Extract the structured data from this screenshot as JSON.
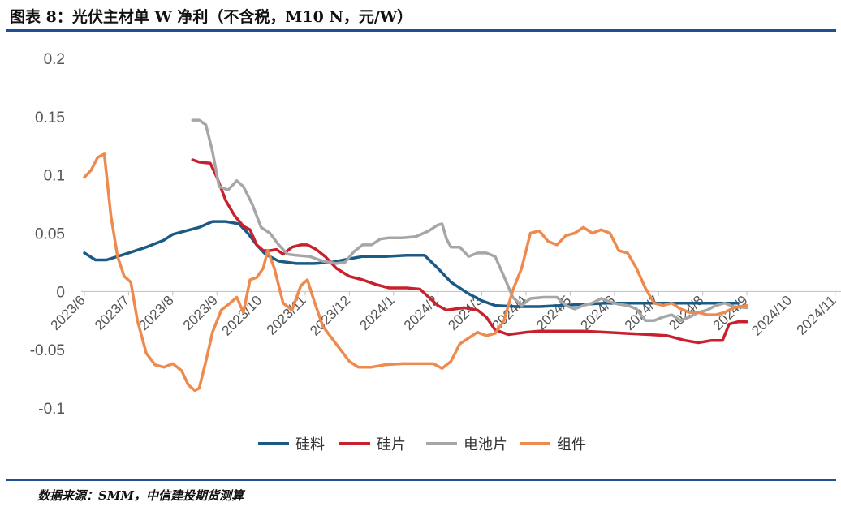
{
  "header": {
    "title": "图表 8：光伏主材单 W 净利（不含税，M10 N，元/W）"
  },
  "footer": {
    "source": "数据来源：SMM，中信建投期货测算"
  },
  "chart_data": {
    "type": "line",
    "title": "图表 8：光伏主材单 W 净利（不含税，M10 N，元/W）",
    "xlabel": "",
    "ylabel": "",
    "ylim": [
      -0.1,
      0.2
    ],
    "yticks": [
      "0.2",
      "0.15",
      "0.1",
      "0.05",
      "0",
      "-0.05",
      "-0.1"
    ],
    "categories": [
      "2023/6",
      "2023/7",
      "2023/8",
      "2023/9",
      "2023/10",
      "2023/11",
      "2023/12",
      "2024/1",
      "2024/2",
      "2024/3",
      "2024/4",
      "2024/5",
      "2024/6",
      "2024/7",
      "2024/8",
      "2024/9",
      "2024/10",
      "2024/11"
    ],
    "legend_position": "bottom",
    "grid": false,
    "series": [
      {
        "name": "硅料",
        "color": "#1b5a85",
        "points": [
          [
            0,
            0.033
          ],
          [
            0.25,
            0.027
          ],
          [
            0.5,
            0.027
          ],
          [
            0.75,
            0.03
          ],
          [
            1,
            0.033
          ],
          [
            1.4,
            0.038
          ],
          [
            1.8,
            0.044
          ],
          [
            2.0,
            0.049
          ],
          [
            2.3,
            0.052
          ],
          [
            2.6,
            0.055
          ],
          [
            2.9,
            0.06
          ],
          [
            3.2,
            0.06
          ],
          [
            3.5,
            0.058
          ],
          [
            3.7,
            0.05
          ],
          [
            3.9,
            0.04
          ],
          [
            4.1,
            0.032
          ],
          [
            4.4,
            0.026
          ],
          [
            4.8,
            0.024
          ],
          [
            5.2,
            0.024
          ],
          [
            5.6,
            0.025
          ],
          [
            6.0,
            0.028
          ],
          [
            6.3,
            0.03
          ],
          [
            6.8,
            0.03
          ],
          [
            7.3,
            0.031
          ],
          [
            7.7,
            0.031
          ],
          [
            8.0,
            0.02
          ],
          [
            8.3,
            0.008
          ],
          [
            8.7,
            -0.002
          ],
          [
            9.0,
            -0.008
          ],
          [
            9.3,
            -0.012
          ],
          [
            9.8,
            -0.013
          ],
          [
            10.3,
            -0.013
          ],
          [
            10.8,
            -0.012
          ],
          [
            11.3,
            -0.011
          ],
          [
            11.8,
            -0.01
          ],
          [
            12.3,
            -0.01
          ],
          [
            12.8,
            -0.01
          ],
          [
            13.3,
            -0.01
          ],
          [
            13.8,
            -0.01
          ],
          [
            14.3,
            -0.01
          ],
          [
            14.8,
            -0.01
          ]
        ]
      },
      {
        "name": "硅片",
        "color": "#c8202d",
        "points": [
          [
            2.45,
            0.113
          ],
          [
            2.6,
            0.111
          ],
          [
            2.85,
            0.11
          ],
          [
            3.0,
            0.098
          ],
          [
            3.2,
            0.078
          ],
          [
            3.4,
            0.065
          ],
          [
            3.6,
            0.056
          ],
          [
            3.75,
            0.053
          ],
          [
            3.9,
            0.04
          ],
          [
            4.05,
            0.035
          ],
          [
            4.2,
            0.035
          ],
          [
            4.35,
            0.036
          ],
          [
            4.5,
            0.032
          ],
          [
            4.7,
            0.038
          ],
          [
            4.9,
            0.04
          ],
          [
            5.05,
            0.04
          ],
          [
            5.25,
            0.036
          ],
          [
            5.45,
            0.03
          ],
          [
            5.7,
            0.02
          ],
          [
            6.0,
            0.013
          ],
          [
            6.3,
            0.01
          ],
          [
            6.6,
            0.006
          ],
          [
            6.9,
            0.003
          ],
          [
            7.3,
            0.003
          ],
          [
            7.6,
            0.002
          ],
          [
            7.8,
            -0.005
          ],
          [
            8.0,
            -0.012
          ],
          [
            8.2,
            -0.016
          ],
          [
            8.4,
            -0.015
          ],
          [
            8.6,
            -0.014
          ],
          [
            8.9,
            -0.016
          ],
          [
            9.1,
            -0.022
          ],
          [
            9.3,
            -0.033
          ],
          [
            9.6,
            -0.037
          ],
          [
            10.0,
            -0.035
          ],
          [
            10.3,
            -0.034
          ],
          [
            10.8,
            -0.034
          ],
          [
            11.3,
            -0.034
          ],
          [
            11.8,
            -0.035
          ],
          [
            12.3,
            -0.036
          ],
          [
            12.8,
            -0.037
          ],
          [
            13.2,
            -0.038
          ],
          [
            13.6,
            -0.042
          ],
          [
            13.9,
            -0.044
          ],
          [
            14.2,
            -0.042
          ],
          [
            14.45,
            -0.042
          ],
          [
            14.6,
            -0.028
          ],
          [
            14.8,
            -0.026
          ],
          [
            15.0,
            -0.026
          ]
        ]
      },
      {
        "name": "电池片",
        "color": "#a6a6a6",
        "points": [
          [
            2.45,
            0.147
          ],
          [
            2.6,
            0.147
          ],
          [
            2.75,
            0.143
          ],
          [
            2.9,
            0.12
          ],
          [
            3.05,
            0.09
          ],
          [
            3.25,
            0.087
          ],
          [
            3.45,
            0.095
          ],
          [
            3.6,
            0.09
          ],
          [
            3.8,
            0.075
          ],
          [
            4.0,
            0.055
          ],
          [
            4.2,
            0.05
          ],
          [
            4.4,
            0.04
          ],
          [
            4.6,
            0.032
          ],
          [
            4.8,
            0.031
          ],
          [
            5.1,
            0.03
          ],
          [
            5.4,
            0.026
          ],
          [
            5.7,
            0.024
          ],
          [
            5.9,
            0.025
          ],
          [
            6.1,
            0.034
          ],
          [
            6.3,
            0.04
          ],
          [
            6.5,
            0.04
          ],
          [
            6.7,
            0.045
          ],
          [
            6.9,
            0.046
          ],
          [
            7.2,
            0.046
          ],
          [
            7.5,
            0.047
          ],
          [
            7.8,
            0.052
          ],
          [
            8.0,
            0.057
          ],
          [
            8.1,
            0.058
          ],
          [
            8.2,
            0.045
          ],
          [
            8.3,
            0.038
          ],
          [
            8.5,
            0.038
          ],
          [
            8.7,
            0.03
          ],
          [
            8.9,
            0.033
          ],
          [
            9.1,
            0.033
          ],
          [
            9.3,
            0.03
          ],
          [
            9.5,
            0.013
          ],
          [
            9.7,
            -0.005
          ],
          [
            9.9,
            -0.012
          ],
          [
            10.1,
            -0.006
          ],
          [
            10.4,
            -0.005
          ],
          [
            10.7,
            -0.005
          ],
          [
            10.9,
            -0.012
          ],
          [
            11.1,
            -0.015
          ],
          [
            11.3,
            -0.012
          ],
          [
            11.5,
            -0.01
          ],
          [
            11.7,
            -0.006
          ],
          [
            11.9,
            -0.009
          ],
          [
            12.1,
            -0.011
          ],
          [
            12.3,
            -0.012
          ],
          [
            12.5,
            -0.015
          ],
          [
            12.7,
            -0.025
          ],
          [
            12.9,
            -0.025
          ],
          [
            13.1,
            -0.022
          ],
          [
            13.3,
            -0.02
          ],
          [
            13.5,
            -0.025
          ],
          [
            13.7,
            -0.022
          ],
          [
            13.9,
            -0.018
          ],
          [
            14.1,
            -0.016
          ],
          [
            14.3,
            -0.012
          ],
          [
            14.5,
            -0.01
          ],
          [
            14.7,
            -0.013
          ],
          [
            15.0,
            -0.014
          ]
        ]
      },
      {
        "name": "组件",
        "color": "#ee8a4e",
        "points": [
          [
            0,
            0.098
          ],
          [
            0.15,
            0.104
          ],
          [
            0.3,
            0.115
          ],
          [
            0.45,
            0.118
          ],
          [
            0.6,
            0.065
          ],
          [
            0.75,
            0.03
          ],
          [
            0.9,
            0.013
          ],
          [
            1.05,
            0.008
          ],
          [
            1.2,
            -0.025
          ],
          [
            1.4,
            -0.053
          ],
          [
            1.6,
            -0.063
          ],
          [
            1.8,
            -0.065
          ],
          [
            2.0,
            -0.062
          ],
          [
            2.2,
            -0.068
          ],
          [
            2.35,
            -0.08
          ],
          [
            2.5,
            -0.085
          ],
          [
            2.6,
            -0.083
          ],
          [
            2.75,
            -0.06
          ],
          [
            2.9,
            -0.035
          ],
          [
            3.1,
            -0.016
          ],
          [
            3.3,
            -0.01
          ],
          [
            3.45,
            -0.005
          ],
          [
            3.6,
            -0.018
          ],
          [
            3.75,
            0.01
          ],
          [
            3.9,
            0.012
          ],
          [
            4.05,
            0.02
          ],
          [
            4.15,
            0.035
          ],
          [
            4.3,
            0.02
          ],
          [
            4.5,
            -0.01
          ],
          [
            4.7,
            -0.016
          ],
          [
            4.9,
            0.005
          ],
          [
            5.05,
            0.01
          ],
          [
            5.2,
            -0.008
          ],
          [
            5.4,
            -0.03
          ],
          [
            5.6,
            -0.04
          ],
          [
            5.8,
            -0.05
          ],
          [
            6.0,
            -0.06
          ],
          [
            6.2,
            -0.065
          ],
          [
            6.5,
            -0.065
          ],
          [
            6.8,
            -0.063
          ],
          [
            7.2,
            -0.062
          ],
          [
            7.6,
            -0.062
          ],
          [
            7.9,
            -0.062
          ],
          [
            8.1,
            -0.066
          ],
          [
            8.3,
            -0.06
          ],
          [
            8.5,
            -0.045
          ],
          [
            8.7,
            -0.04
          ],
          [
            8.9,
            -0.035
          ],
          [
            9.1,
            -0.038
          ],
          [
            9.3,
            -0.036
          ],
          [
            9.5,
            -0.025
          ],
          [
            9.7,
            0.001
          ],
          [
            9.9,
            0.02
          ],
          [
            10.1,
            0.05
          ],
          [
            10.3,
            0.052
          ],
          [
            10.5,
            0.043
          ],
          [
            10.7,
            0.04
          ],
          [
            10.9,
            0.048
          ],
          [
            11.1,
            0.05
          ],
          [
            11.3,
            0.055
          ],
          [
            11.5,
            0.05
          ],
          [
            11.7,
            0.053
          ],
          [
            11.9,
            0.05
          ],
          [
            12.1,
            0.035
          ],
          [
            12.3,
            0.033
          ],
          [
            12.5,
            0.02
          ],
          [
            12.7,
            0.003
          ],
          [
            12.9,
            -0.01
          ],
          [
            13.1,
            -0.012
          ],
          [
            13.3,
            -0.01
          ],
          [
            13.5,
            -0.015
          ],
          [
            13.7,
            -0.018
          ],
          [
            13.9,
            -0.018
          ],
          [
            14.1,
            -0.02
          ],
          [
            14.3,
            -0.02
          ],
          [
            14.5,
            -0.018
          ],
          [
            14.7,
            -0.014
          ],
          [
            15.0,
            -0.012
          ]
        ]
      }
    ]
  }
}
